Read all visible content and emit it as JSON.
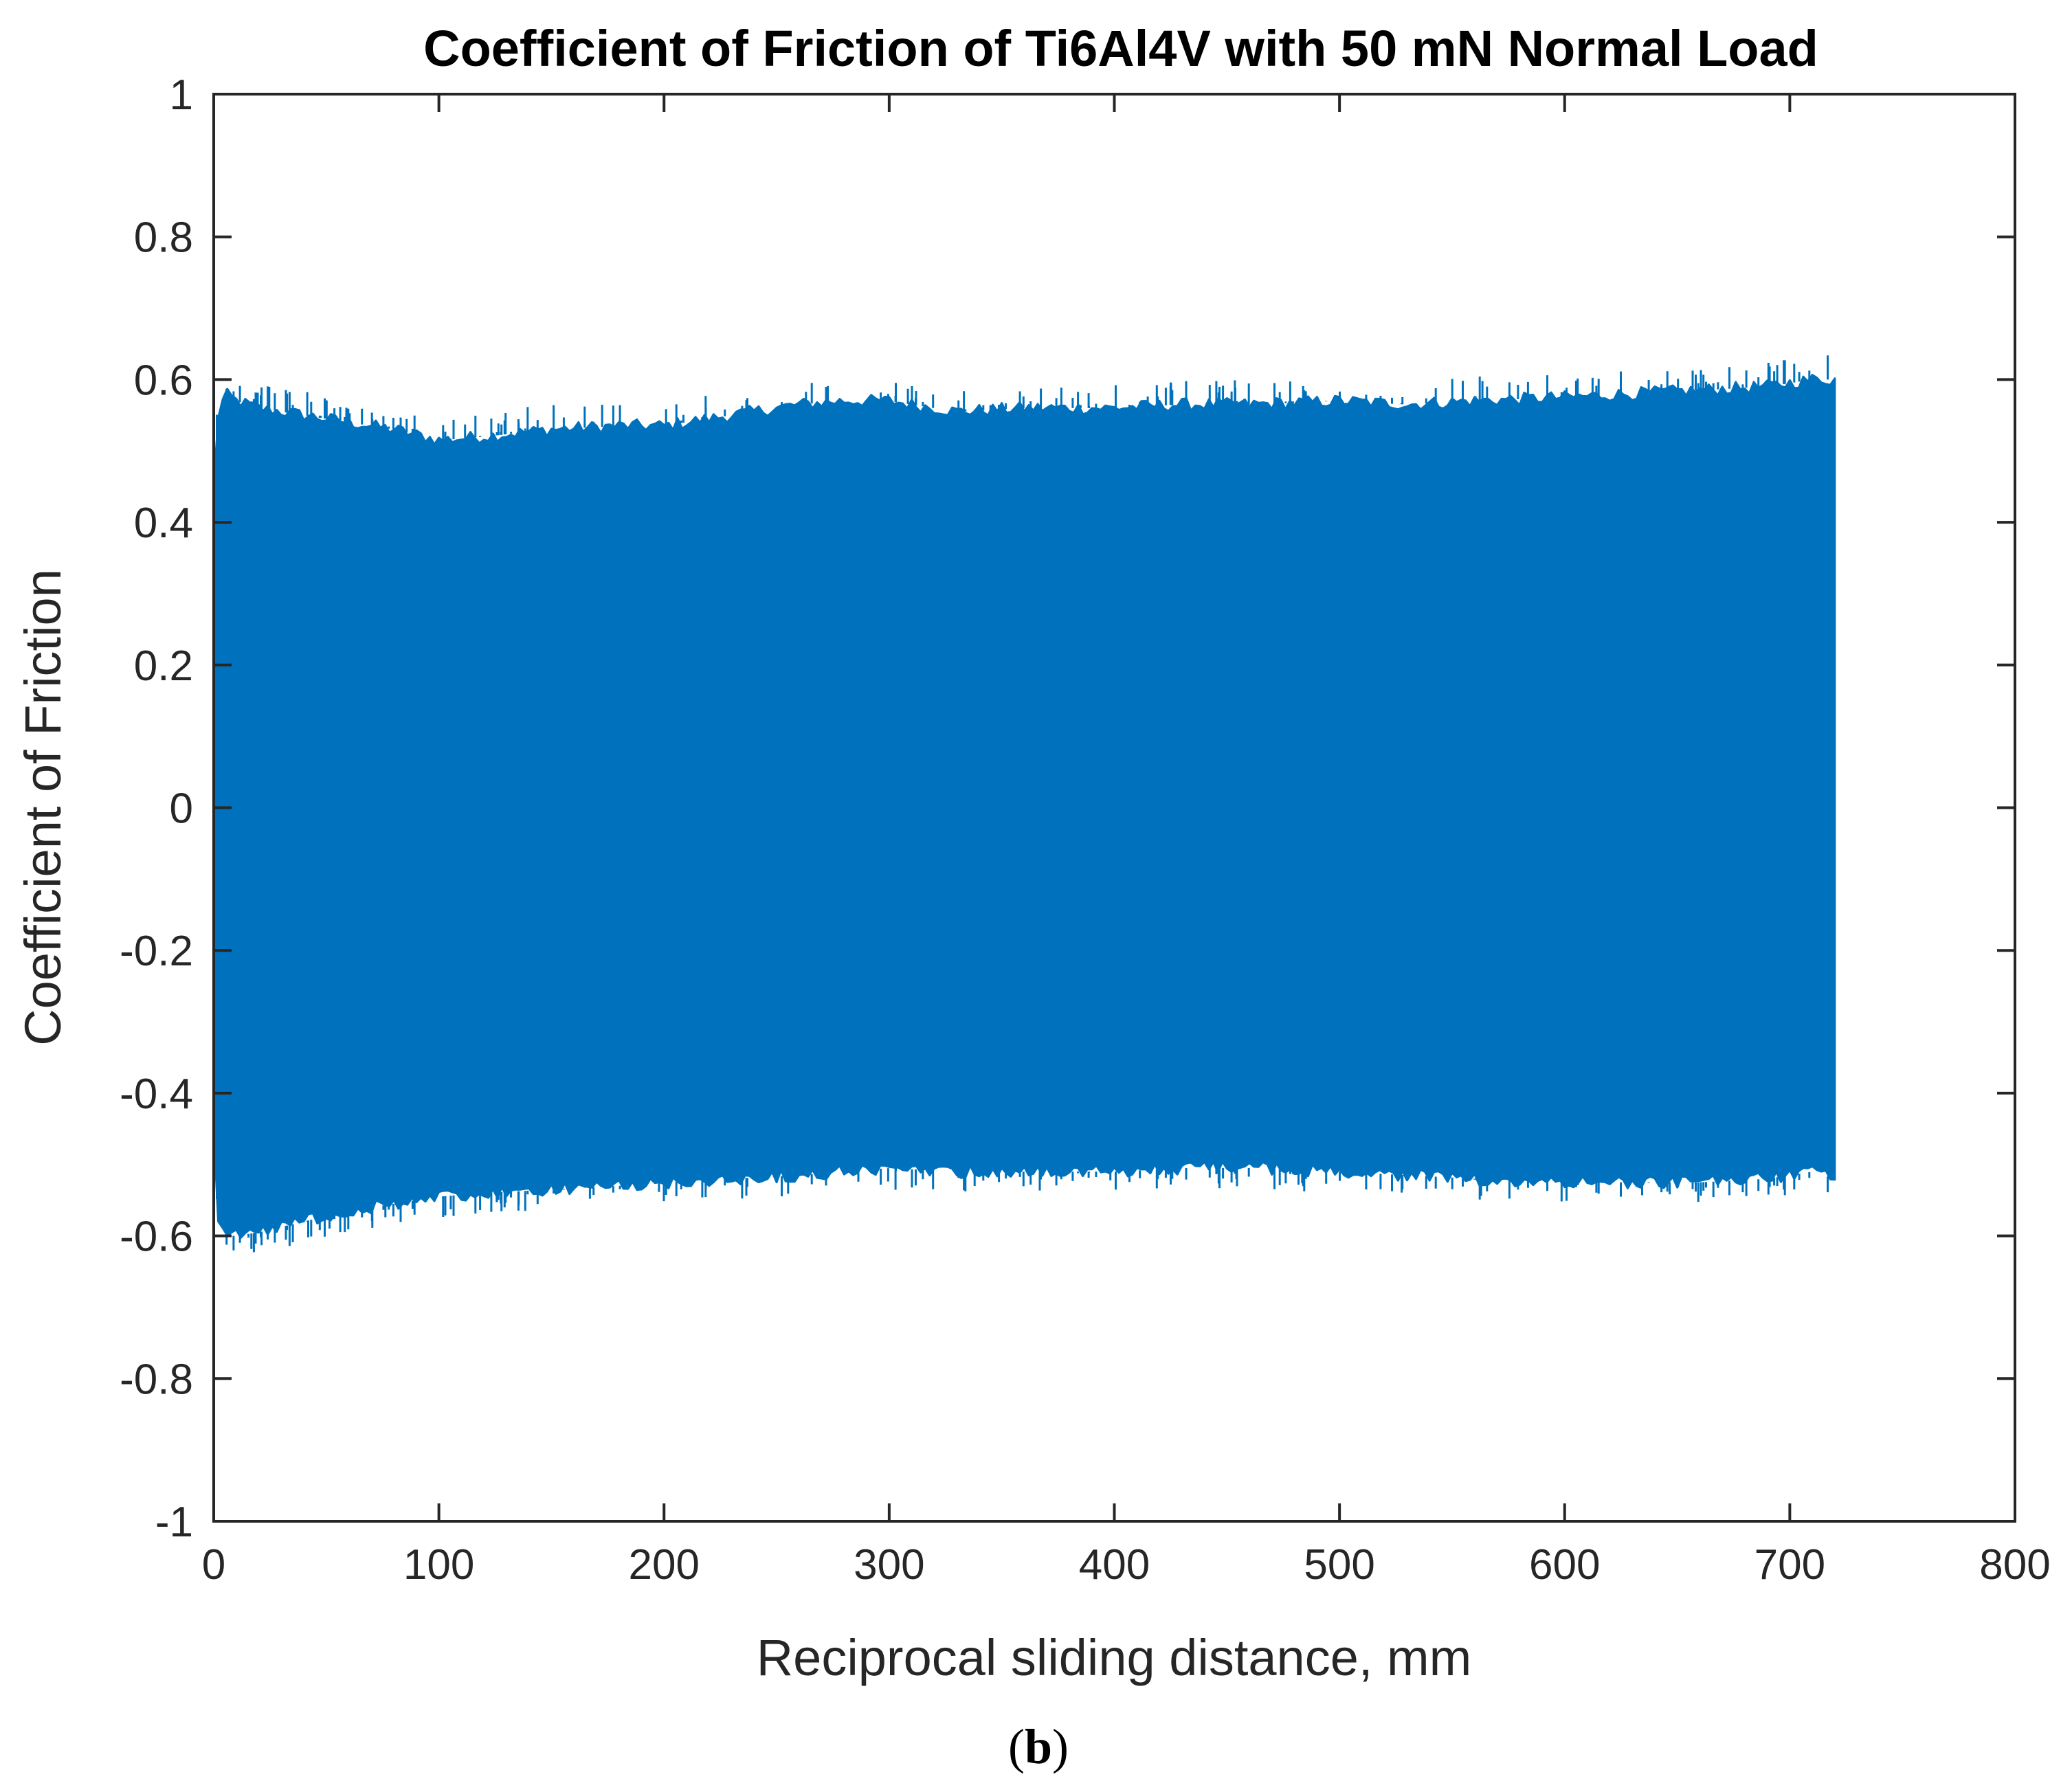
{
  "chart_data": {
    "type": "line",
    "title": "Coefficient of Friction of Ti6Al4V with 50 mN Normal Load",
    "xlabel": "Reciprocal sliding distance, mm",
    "ylabel": "Coefficient of Friction",
    "xlim": [
      0,
      800
    ],
    "ylim": [
      -1,
      1
    ],
    "x_ticks": [
      0,
      100,
      200,
      300,
      400,
      500,
      600,
      700,
      800
    ],
    "y_ticks": [
      -1,
      -0.8,
      -0.6,
      -0.4,
      -0.2,
      0,
      0.2,
      0.4,
      0.6,
      0.8,
      1
    ],
    "x_tick_labels": [
      "0",
      "100",
      "200",
      "300",
      "400",
      "500",
      "600",
      "700",
      "800"
    ],
    "y_tick_labels": [
      "-1",
      "-0.8",
      "-0.6",
      "-0.4",
      "-0.2",
      "0",
      "0.2",
      "0.4",
      "0.6",
      "0.8",
      "1"
    ],
    "grid": false,
    "legend": "none",
    "series": [
      {
        "color": "#0072BD",
        "description_visual": "dense oscillating signal forming a filled band",
        "upper_envelope": {
          "x": [
            0,
            2,
            5,
            10,
            20,
            40,
            60,
            80,
            100,
            120,
            150,
            180,
            200,
            230,
            260,
            280,
            300,
            330,
            360,
            400,
            430,
            460,
            500,
            530,
            560,
            600,
            630,
            660,
            690,
            710,
            720
          ],
          "y": [
            0.45,
            0.55,
            0.58,
            0.57,
            0.56,
            0.55,
            0.54,
            0.53,
            0.515,
            0.52,
            0.53,
            0.535,
            0.535,
            0.55,
            0.565,
            0.57,
            0.57,
            0.555,
            0.56,
            0.56,
            0.565,
            0.565,
            0.57,
            0.565,
            0.57,
            0.575,
            0.58,
            0.585,
            0.59,
            0.6,
            0.6
          ]
        },
        "lower_envelope": {
          "x": [
            0,
            2,
            5,
            10,
            20,
            40,
            60,
            80,
            100,
            120,
            150,
            180,
            200,
            230,
            260,
            280,
            300,
            330,
            360,
            400,
            430,
            460,
            500,
            530,
            560,
            600,
            630,
            660,
            690,
            710,
            720
          ],
          "y": [
            -0.45,
            -0.58,
            -0.6,
            -0.6,
            -0.595,
            -0.58,
            -0.565,
            -0.555,
            -0.545,
            -0.54,
            -0.535,
            -0.53,
            -0.525,
            -0.52,
            -0.515,
            -0.51,
            -0.505,
            -0.51,
            -0.51,
            -0.51,
            -0.505,
            -0.505,
            -0.51,
            -0.515,
            -0.52,
            -0.525,
            -0.525,
            -0.525,
            -0.52,
            -0.51,
            -0.52
          ]
        }
      }
    ]
  },
  "caption": {
    "open": "(",
    "letter": "b",
    "close": ")"
  }
}
